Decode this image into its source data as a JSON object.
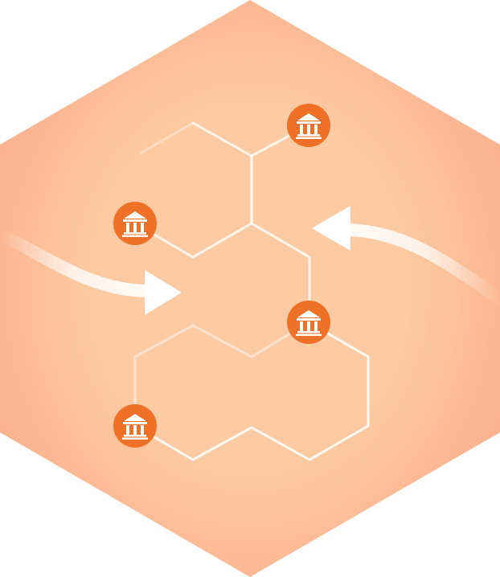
{
  "diagram": {
    "nodes": [
      {
        "id": "bank-top-right",
        "icon": "bank-icon"
      },
      {
        "id": "bank-upper-left",
        "icon": "bank-icon"
      },
      {
        "id": "bank-center",
        "icon": "bank-icon"
      },
      {
        "id": "bank-lower-left",
        "icon": "bank-icon"
      }
    ],
    "arrows": [
      {
        "id": "arrow-in-left",
        "direction": "right"
      },
      {
        "id": "arrow-in-right",
        "direction": "left"
      }
    ]
  },
  "colors": {
    "hexagon_edge": "#fbb28f",
    "hexagon_center": "#fdcba3",
    "node_fill": "#ee7127",
    "node_icon": "#ffffff",
    "line": "#ffffff",
    "arrow": "#ffffff"
  }
}
